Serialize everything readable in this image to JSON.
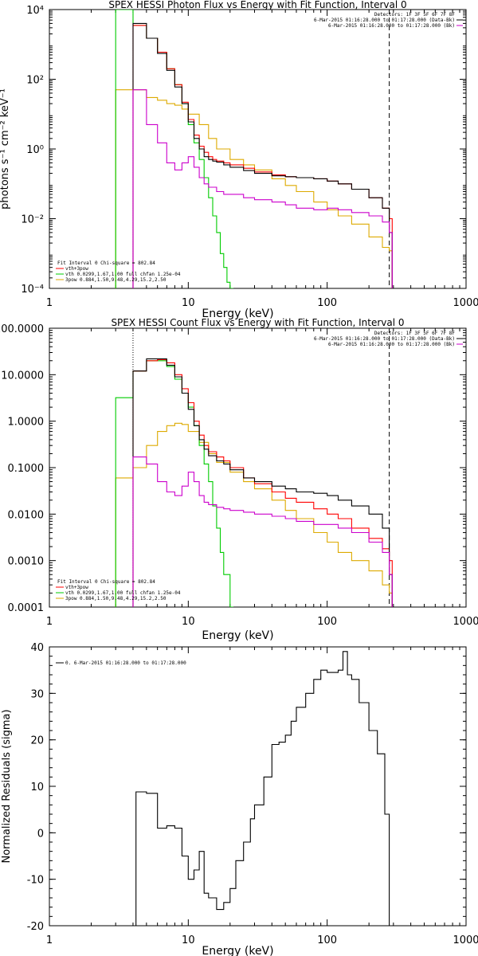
{
  "chart_data": [
    {
      "type": "line",
      "title": "SPEX HESSI Photon Flux vs Energy with Fit Function, Interval 0",
      "xlabel": "Energy (keV)",
      "ylabel": "photons s⁻¹ cm⁻² keV⁻¹",
      "xscale": "log",
      "yscale": "log",
      "xlim": [
        1,
        1000
      ],
      "ylim": [
        0.0001,
        10000
      ],
      "x_ticks": [
        "1",
        "10",
        "100",
        "1000"
      ],
      "y_ticks": [
        "10⁻⁴",
        "10⁻²",
        "10⁰",
        "10²",
        "10⁴"
      ],
      "legend_right": [
        {
          "text": "Detectors: 1F 3F 5F 6F 7F 8F",
          "color": "#000000"
        },
        {
          "text": "6-Mar-2015 01:16:28.000 to 01:17:28.000 (Data-Bk)",
          "color": "#000000"
        },
        {
          "text": "6-Mar-2015 01:16:28.000 to 01:17:28.000 (Bk)",
          "color": "#cc00cc"
        }
      ],
      "legend_left": [
        {
          "text": "Fit Interval 0   Chi-square = 802.84",
          "color": null
        },
        {
          "text": "vth+3pow",
          "color": "#ff0000"
        },
        {
          "text": "vth 0.0299,1.67,1.00  full chfan 1.25e-04",
          "color": "#00cc00"
        },
        {
          "text": "3pow 0.884,1.50,9.48,4.29,15.2,2.50",
          "color": "#ddaa00"
        }
      ],
      "vlines": [
        {
          "x": 4.0,
          "style": "dotted",
          "color": "#cc00cc"
        },
        {
          "x": 280,
          "style": "dashed",
          "color": "#000000"
        }
      ],
      "series": [
        {
          "color": "#ddaa00",
          "x": [
            3,
            4,
            5,
            6,
            7,
            8,
            9,
            10,
            12,
            14,
            16,
            20,
            25,
            30,
            40,
            50,
            60,
            80,
            100,
            120,
            150,
            200,
            250,
            280
          ],
          "y": [
            50,
            50,
            30,
            25,
            20,
            18,
            14,
            10,
            5,
            2,
            1.0,
            0.5,
            0.35,
            0.25,
            0.14,
            0.09,
            0.06,
            0.03,
            0.018,
            0.012,
            0.007,
            0.003,
            0.0015,
            0.0012
          ]
        },
        {
          "color": "#00cc00",
          "x": [
            3,
            4,
            5,
            6,
            7,
            8,
            9,
            10,
            11,
            12,
            13,
            14,
            15,
            16,
            17,
            18,
            19,
            20
          ],
          "y": [
            10000,
            3500,
            1500,
            600,
            200,
            70,
            20,
            5,
            1.5,
            0.5,
            0.15,
            0.04,
            0.012,
            0.004,
            0.001,
            0.0004,
            0.00015,
            0.0001
          ]
        },
        {
          "color": "#ff0000",
          "x": [
            4,
            5,
            6,
            7,
            8,
            9,
            10,
            11,
            12,
            13,
            14,
            15,
            16,
            18,
            20,
            25,
            30,
            40,
            50,
            60,
            80,
            100,
            120,
            150,
            200,
            250,
            280
          ],
          "y": [
            3500,
            1500,
            600,
            200,
            70,
            22,
            7,
            2.5,
            1.2,
            0.8,
            0.6,
            0.5,
            0.45,
            0.4,
            0.35,
            0.28,
            0.22,
            0.18,
            0.16,
            0.15,
            0.14,
            0.12,
            0.1,
            0.07,
            0.04,
            0.02,
            0.01
          ]
        },
        {
          "color": "#000000",
          "x": [
            4,
            5,
            6,
            7,
            8,
            9,
            10,
            11,
            12,
            13,
            14,
            15,
            16,
            18,
            20,
            25,
            30,
            40,
            50,
            60,
            80,
            100,
            120,
            150,
            200,
            250,
            280
          ],
          "y": [
            4000,
            1500,
            550,
            180,
            60,
            20,
            6,
            2,
            1.0,
            0.6,
            0.5,
            0.45,
            0.42,
            0.35,
            0.3,
            0.24,
            0.2,
            0.17,
            0.16,
            0.15,
            0.14,
            0.12,
            0.1,
            0.07,
            0.04,
            0.02,
            0.004
          ]
        },
        {
          "color": "#cc00cc",
          "x": [
            4,
            5,
            6,
            7,
            8,
            9,
            10,
            11,
            12,
            13,
            14,
            16,
            18,
            20,
            25,
            30,
            40,
            50,
            60,
            80,
            100,
            120,
            150,
            200,
            250,
            280
          ],
          "y": [
            50,
            5,
            1.5,
            0.4,
            0.25,
            0.4,
            0.6,
            0.3,
            0.15,
            0.1,
            0.08,
            0.06,
            0.05,
            0.05,
            0.04,
            0.035,
            0.03,
            0.025,
            0.02,
            0.018,
            0.02,
            0.018,
            0.015,
            0.012,
            0.008,
            0.004
          ]
        }
      ]
    },
    {
      "type": "line",
      "title": "SPEX HESSI Count Flux vs Energy with Fit Function, Interval 0",
      "xlabel": "Energy (keV)",
      "ylabel": "",
      "xscale": "log",
      "yscale": "log",
      "xlim": [
        1,
        1000
      ],
      "ylim": [
        0.0001,
        100
      ],
      "x_ticks": [
        "1",
        "10",
        "100",
        "1000"
      ],
      "y_ticks": [
        "0.0001",
        "0.0010",
        "0.0100",
        "0.1000",
        "1.0000",
        "10.0000",
        "100.0000"
      ],
      "legend_right": [
        {
          "text": "Detectors: 1F 3F 5F 6F 7F 8F",
          "color": "#000000"
        },
        {
          "text": "6-Mar-2015 01:16:28.000 to 01:17:28.000 (Data-Bk)",
          "color": "#000000"
        },
        {
          "text": "6-Mar-2015 01:16:28.000 to 01:17:28.000 (Bk)",
          "color": "#cc00cc"
        }
      ],
      "legend_left": [
        {
          "text": "Fit Interval 0   Chi-square = 802.84",
          "color": null
        },
        {
          "text": "vth+3pow",
          "color": "#ff0000"
        },
        {
          "text": "vth 0.0299,1.67,1.00  full chfan 1.25e-04",
          "color": "#00cc00"
        },
        {
          "text": "3pow 0.884,1.50,9.48,4.29,15.2,2.50",
          "color": "#ddaa00"
        }
      ],
      "vlines": [
        {
          "x": 4.0,
          "style": "dotted",
          "color": "#000000"
        },
        {
          "x": 280,
          "style": "dashed",
          "color": "#000000"
        }
      ],
      "series": [
        {
          "color": "#ddaa00",
          "x": [
            3,
            4,
            5,
            6,
            7,
            8,
            9,
            10,
            12,
            14,
            16,
            20,
            25,
            30,
            40,
            50,
            60,
            80,
            100,
            120,
            150,
            200,
            250,
            280
          ],
          "y": [
            0.06,
            0.1,
            0.3,
            0.6,
            0.8,
            0.9,
            0.85,
            0.6,
            0.35,
            0.2,
            0.13,
            0.08,
            0.05,
            0.035,
            0.02,
            0.012,
            0.008,
            0.004,
            0.0025,
            0.0015,
            0.001,
            0.0006,
            0.0003,
            0.0002
          ]
        },
        {
          "color": "#00cc00",
          "x": [
            3,
            4,
            5,
            6,
            7,
            8,
            9,
            10,
            11,
            12,
            13,
            14,
            15,
            16,
            17,
            18,
            20
          ],
          "y": [
            3.2,
            12,
            20,
            20,
            15,
            8,
            4,
            2,
            0.8,
            0.3,
            0.12,
            0.05,
            0.015,
            0.005,
            0.0015,
            0.0005,
            0.0001
          ]
        },
        {
          "color": "#ff0000",
          "x": [
            4,
            5,
            6,
            7,
            8,
            9,
            10,
            11,
            12,
            13,
            14,
            16,
            18,
            20,
            25,
            30,
            40,
            50,
            60,
            80,
            100,
            120,
            150,
            200,
            250,
            280
          ],
          "y": [
            12,
            20,
            21,
            18,
            10,
            5,
            2.5,
            1.0,
            0.5,
            0.3,
            0.22,
            0.17,
            0.14,
            0.1,
            0.06,
            0.045,
            0.03,
            0.022,
            0.018,
            0.013,
            0.01,
            0.008,
            0.005,
            0.003,
            0.0018,
            0.001
          ]
        },
        {
          "color": "#000000",
          "x": [
            4,
            5,
            6,
            7,
            8,
            9,
            10,
            11,
            12,
            13,
            14,
            16,
            18,
            20,
            25,
            30,
            40,
            50,
            60,
            80,
            100,
            120,
            150,
            200,
            250,
            280
          ],
          "y": [
            12,
            22,
            22,
            16,
            9,
            4,
            1.8,
            0.8,
            0.4,
            0.25,
            0.18,
            0.14,
            0.12,
            0.09,
            0.06,
            0.05,
            0.04,
            0.035,
            0.03,
            0.028,
            0.025,
            0.02,
            0.015,
            0.01,
            0.005,
            0.0005
          ]
        },
        {
          "color": "#cc00cc",
          "x": [
            4,
            5,
            6,
            7,
            8,
            9,
            10,
            11,
            12,
            13,
            14,
            16,
            18,
            20,
            25,
            30,
            40,
            50,
            60,
            80,
            100,
            120,
            150,
            200,
            250,
            280
          ],
          "y": [
            0.17,
            0.12,
            0.05,
            0.03,
            0.025,
            0.04,
            0.08,
            0.05,
            0.025,
            0.018,
            0.016,
            0.014,
            0.013,
            0.012,
            0.011,
            0.01,
            0.009,
            0.008,
            0.007,
            0.006,
            0.006,
            0.005,
            0.004,
            0.0025,
            0.0015,
            0.0005
          ]
        }
      ]
    },
    {
      "type": "line",
      "title": "",
      "xlabel": "Energy (keV)",
      "ylabel": "Normalized Residuals (sigma)",
      "xscale": "log",
      "yscale": "linear",
      "xlim": [
        1,
        1000
      ],
      "ylim": [
        -20,
        40
      ],
      "x_ticks": [
        "1",
        "10",
        "100",
        "1000"
      ],
      "y_ticks": [
        "-20",
        "-10",
        "0",
        "10",
        "20",
        "30",
        "40"
      ],
      "legend_left": [
        {
          "text": "0. 6-Mar-2015 01:16:28.000 to 01:17:28.000",
          "color": "#000000"
        }
      ],
      "series": [
        {
          "color": "#000000",
          "x": [
            4.2,
            5,
            6,
            7,
            8,
            9,
            10,
            11,
            12,
            13,
            14,
            16,
            18,
            20,
            22,
            25,
            28,
            30,
            35,
            40,
            45,
            50,
            55,
            60,
            70,
            80,
            90,
            100,
            110,
            120,
            130,
            140,
            150,
            170,
            200,
            230,
            260,
            280
          ],
          "y": [
            8.8,
            8.5,
            1,
            1.5,
            1,
            -5,
            -10,
            -8,
            -4,
            -13,
            -14,
            -16.5,
            -15,
            -12,
            -6,
            -2,
            3,
            6,
            12,
            19,
            19.5,
            21,
            24,
            27,
            30,
            33,
            35,
            34.5,
            34.5,
            35,
            39,
            34,
            33,
            28,
            22,
            17,
            4,
            -20
          ]
        }
      ]
    }
  ]
}
